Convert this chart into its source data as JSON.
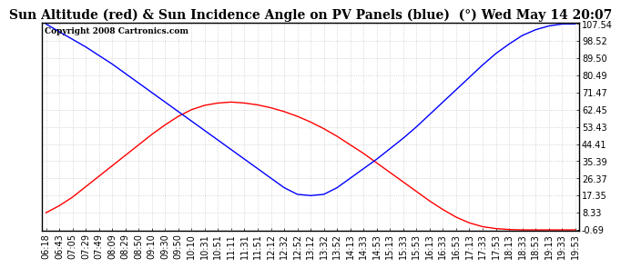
{
  "title": "Sun Altitude (red) & Sun Incidence Angle on PV Panels (blue)  (°) Wed May 14 20:07",
  "copyright": "Copyright 2008 Cartronics.com",
  "background_color": "#ffffff",
  "plot_bg_color": "#ffffff",
  "grid_color": "#bbbbbb",
  "ymin": -0.69,
  "ymax": 107.54,
  "yticks": [
    107.54,
    98.52,
    89.5,
    80.49,
    71.47,
    62.45,
    53.43,
    44.41,
    35.39,
    26.37,
    17.35,
    8.33,
    -0.69
  ],
  "xtick_labels": [
    "06:18",
    "06:43",
    "07:05",
    "07:29",
    "07:49",
    "08:09",
    "08:29",
    "08:50",
    "09:10",
    "09:30",
    "09:50",
    "10:10",
    "10:31",
    "10:51",
    "11:11",
    "11:31",
    "11:51",
    "12:12",
    "12:32",
    "12:52",
    "13:12",
    "13:32",
    "13:52",
    "14:13",
    "14:33",
    "14:53",
    "15:13",
    "15:33",
    "15:53",
    "16:13",
    "16:33",
    "16:53",
    "17:13",
    "17:33",
    "17:53",
    "18:13",
    "18:33",
    "18:53",
    "19:13",
    "19:33",
    "19:53"
  ],
  "red_line_color": "#ff0000",
  "blue_line_color": "#0000ff",
  "title_fontsize": 10,
  "copyright_fontsize": 6.5,
  "tick_fontsize": 7,
  "red_data": [
    8.33,
    12.0,
    16.5,
    22.0,
    27.5,
    33.0,
    38.5,
    44.0,
    49.5,
    54.5,
    59.0,
    62.5,
    64.8,
    66.0,
    66.5,
    66.0,
    65.0,
    63.5,
    61.5,
    59.0,
    56.0,
    52.5,
    48.5,
    44.0,
    39.5,
    34.5,
    29.5,
    24.5,
    19.5,
    14.5,
    10.0,
    6.0,
    3.0,
    1.0,
    0.0,
    -0.5,
    -0.69,
    -0.69,
    -0.69,
    -0.69,
    -0.69
  ],
  "blue_data": [
    107.54,
    103.5,
    99.5,
    95.5,
    91.0,
    86.5,
    81.5,
    76.5,
    71.5,
    66.5,
    61.5,
    56.5,
    51.5,
    46.5,
    41.5,
    36.5,
    31.5,
    26.5,
    21.5,
    18.0,
    17.35,
    18.0,
    21.5,
    26.5,
    31.5,
    36.5,
    42.0,
    47.5,
    53.5,
    60.0,
    66.5,
    73.0,
    79.5,
    86.0,
    92.0,
    97.0,
    101.5,
    104.5,
    106.5,
    107.5,
    107.54
  ]
}
